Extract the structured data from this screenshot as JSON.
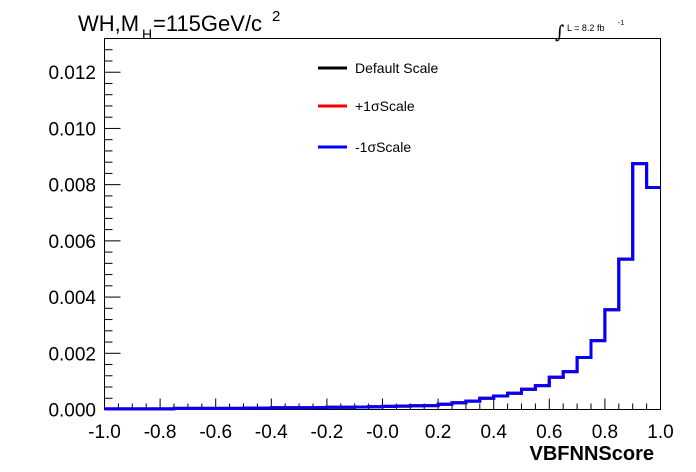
{
  "title": {
    "prefix": "WH,M",
    "subscript": "H",
    "main": "=115GeV/c",
    "superscript": "2"
  },
  "lumi": {
    "integral": "∫",
    "text": "L = 8.2 fb",
    "superscript": "-1"
  },
  "legend": [
    {
      "label": "Default Scale",
      "color": "#000000"
    },
    {
      "label": "+1σScale",
      "color": "#ff0000"
    },
    {
      "label": "-1σScale",
      "color": "#0000ff"
    }
  ],
  "chart_data": {
    "type": "histogram",
    "xlabel": "VBFNNScore",
    "ylabel": "",
    "xlim": [
      -1.0,
      1.0
    ],
    "ylim": [
      0.0,
      0.0132
    ],
    "x_ticks": [
      "-1.0",
      "-0.8",
      "-0.6",
      "-0.4",
      "-0.2",
      "-0.0",
      "0.2",
      "0.4",
      "0.6",
      "0.8",
      "1.0"
    ],
    "y_ticks": [
      "0.000",
      "0.002",
      "0.004",
      "0.006",
      "0.008",
      "0.010",
      "0.012"
    ],
    "bin_edges": [
      -1.0,
      -0.95,
      -0.9,
      -0.85,
      -0.8,
      -0.75,
      -0.7,
      -0.65,
      -0.6,
      -0.55,
      -0.5,
      -0.45,
      -0.4,
      -0.35,
      -0.3,
      -0.25,
      -0.2,
      -0.15,
      -0.1,
      -0.05,
      0.0,
      0.05,
      0.1,
      0.15,
      0.2,
      0.25,
      0.3,
      0.35,
      0.4,
      0.45,
      0.5,
      0.55,
      0.6,
      0.65,
      0.7,
      0.75,
      0.8,
      0.85,
      0.9,
      0.95,
      1.0
    ],
    "series": [
      {
        "name": "Default Scale",
        "color": "#000000",
        "values": [
          2e-05,
          2e-05,
          2e-05,
          2e-05,
          2e-05,
          4e-05,
          4e-05,
          4e-05,
          4e-05,
          4e-05,
          5e-05,
          5e-05,
          6e-05,
          6e-05,
          6e-05,
          7e-05,
          8e-05,
          8e-05,
          9e-05,
          0.0001,
          0.00011,
          0.00012,
          0.00013,
          0.00014,
          0.00019,
          0.00024,
          0.0003,
          0.0004,
          0.00048,
          0.00058,
          0.00072,
          0.00085,
          0.00115,
          0.00135,
          0.00185,
          0.00245,
          0.00355,
          0.00535,
          0.00875,
          0.0079
        ]
      },
      {
        "name": "+1σScale",
        "color": "#ff0000",
        "values": [
          2e-05,
          2e-05,
          2e-05,
          2e-05,
          2e-05,
          4e-05,
          4e-05,
          4e-05,
          4e-05,
          4e-05,
          5e-05,
          5e-05,
          6e-05,
          6e-05,
          6e-05,
          7e-05,
          8e-05,
          8e-05,
          9e-05,
          0.0001,
          0.00011,
          0.00012,
          0.00013,
          0.00014,
          0.00019,
          0.00024,
          0.0003,
          0.0004,
          0.00048,
          0.00058,
          0.00072,
          0.00085,
          0.00115,
          0.00135,
          0.00185,
          0.00245,
          0.00355,
          0.00535,
          0.00875,
          0.0079
        ]
      },
      {
        "name": "-1σScale",
        "color": "#0000ff",
        "values": [
          2e-05,
          2e-05,
          2e-05,
          2e-05,
          2e-05,
          4e-05,
          4e-05,
          4e-05,
          4e-05,
          4e-05,
          5e-05,
          5e-05,
          6e-05,
          6e-05,
          6e-05,
          7e-05,
          8e-05,
          8e-05,
          9e-05,
          0.0001,
          0.00011,
          0.00012,
          0.00013,
          0.00014,
          0.00019,
          0.00024,
          0.0003,
          0.0004,
          0.00048,
          0.00058,
          0.00072,
          0.00085,
          0.00115,
          0.00135,
          0.00185,
          0.00245,
          0.00355,
          0.00535,
          0.00875,
          0.0079
        ]
      }
    ]
  }
}
